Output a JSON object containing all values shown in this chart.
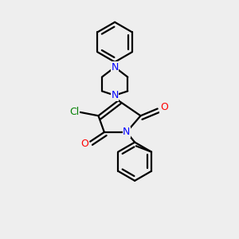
{
  "background_color": "#eeeeee",
  "bond_color": "#000000",
  "N_color": "#0000ff",
  "O_color": "#ff0000",
  "Cl_color": "#008000",
  "line_width": 1.6,
  "font_size": 9,
  "figsize": [
    3.0,
    3.0
  ],
  "dpi": 100,
  "xlim": [
    0,
    10
  ],
  "ylim": [
    0,
    10
  ]
}
